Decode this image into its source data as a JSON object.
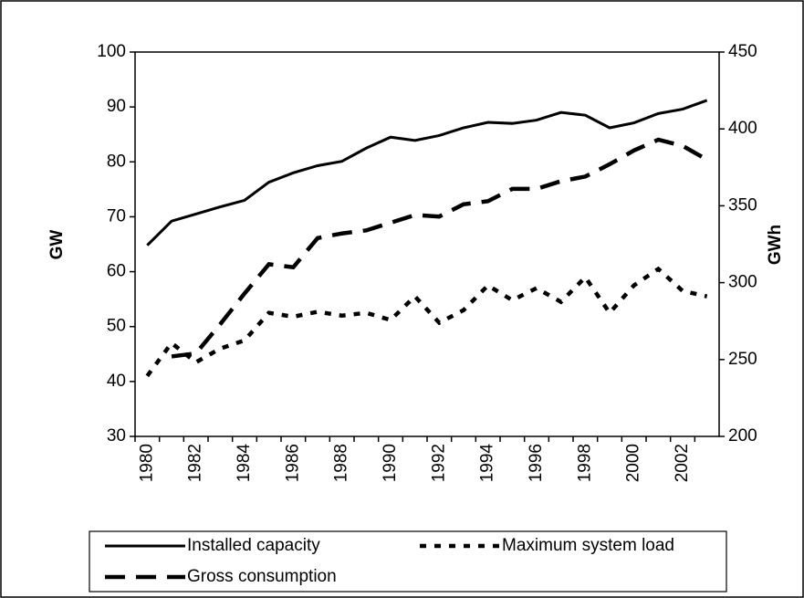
{
  "chart_data": {
    "type": "line",
    "categories": [
      "1980",
      null,
      "1982",
      null,
      "1984",
      null,
      "1986",
      null,
      "1988",
      null,
      "1990",
      null,
      "1992",
      null,
      "1994",
      null,
      "1996",
      null,
      "1998",
      null,
      "2000",
      null,
      "2002",
      null
    ],
    "ylabel": "GW",
    "y2label": "GWh",
    "ylim": [
      30,
      100
    ],
    "yticks": [
      30,
      40,
      50,
      60,
      70,
      80,
      90,
      100
    ],
    "y2lim": [
      200,
      450
    ],
    "y2ticks": [
      200,
      250,
      300,
      350,
      400,
      450
    ],
    "series": [
      {
        "name": "Installed capacity",
        "color": "#000000",
        "style": "solid",
        "values": [
          64.8,
          69.2,
          70.5,
          71.8,
          73,
          76.3,
          78,
          79.3,
          80.1,
          82.5,
          84.5,
          83.9,
          84.8,
          86.2,
          87.2,
          87,
          87.6,
          89,
          88.5,
          86.2,
          87.1,
          88.8,
          89.6,
          91.2
        ]
      },
      {
        "name": "Maximum system load",
        "color": "#000000",
        "style": "dotted",
        "values": [
          41,
          47,
          43.5,
          46,
          47.5,
          52.5,
          51.8,
          52.7,
          52,
          52.5,
          51.2,
          55.5,
          50.7,
          53,
          57.5,
          54.8,
          57,
          54.5,
          59,
          52.5,
          57.5,
          60.5,
          56.5,
          55.5
        ]
      },
      {
        "name": "Gross consumption",
        "color": "#000000",
        "style": "dashed",
        "axis": "y2",
        "values": [
          null,
          252,
          254,
          273,
          293,
          312,
          310,
          329,
          332,
          334,
          339,
          344,
          343,
          351,
          353,
          361,
          361,
          366,
          369,
          377,
          386,
          393,
          389,
          380
        ]
      }
    ],
    "legend": "bottom"
  }
}
